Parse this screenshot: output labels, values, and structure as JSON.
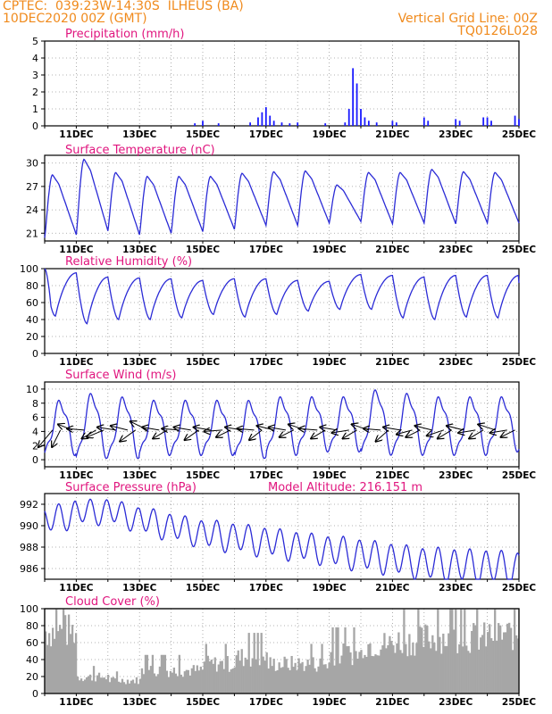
{
  "header": {
    "line1_left": "CPTEC:  039:23W-14:30S  ILHEUS (BA)",
    "line2_left": "10DEC2020 00Z (GMT)",
    "line2_right": "Vertical Grid Line: 00Z",
    "line3_right": "TQ0126L028"
  },
  "colors": {
    "header": "#f08a1c",
    "panel_title": "#e0157e",
    "series": "#2b2bd6",
    "precip_bar": "#1a1aff",
    "cloud_fill": "#a6a6a6",
    "axis": "#000000",
    "grid": "#9a9a9a"
  },
  "x_axis": {
    "type": "date",
    "start": "10DEC2020 00Z",
    "end": "25DEC2020 00Z",
    "tick_labels": [
      "11DEC",
      "13DEC",
      "15DEC",
      "17DEC",
      "19DEC",
      "21DEC",
      "23DEC",
      "25DEC"
    ],
    "vertical_grid": "daily at 00Z"
  },
  "chart_data": [
    {
      "id": "precip",
      "type": "bar",
      "title": "Precipitation (mm/h)",
      "ylim": [
        0,
        5
      ],
      "yticks": [
        0,
        1,
        2,
        3,
        4,
        5
      ],
      "grid": true,
      "points": [
        [
          "14DEC 18Z",
          0.15
        ],
        [
          "15DEC 00Z",
          0.3
        ],
        [
          "15DEC 12Z",
          0.15
        ],
        [
          "16DEC 12Z",
          0.2
        ],
        [
          "16DEC 18Z",
          0.5
        ],
        [
          "16DEC 21Z",
          0.8
        ],
        [
          "17DEC 00Z",
          1.1
        ],
        [
          "17DEC 03Z",
          0.6
        ],
        [
          "17DEC 06Z",
          0.3
        ],
        [
          "17DEC 12Z",
          0.2
        ],
        [
          "17DEC 18Z",
          0.15
        ],
        [
          "18DEC 00Z",
          0.2
        ],
        [
          "18DEC 21Z",
          0.15
        ],
        [
          "19DEC 12Z",
          0.2
        ],
        [
          "19DEC 15Z",
          1.0
        ],
        [
          "19DEC 18Z",
          3.4
        ],
        [
          "19DEC 21Z",
          2.5
        ],
        [
          "20DEC 00Z",
          1.0
        ],
        [
          "20DEC 03Z",
          0.5
        ],
        [
          "20DEC 06Z",
          0.3
        ],
        [
          "20DEC 12Z",
          0.2
        ],
        [
          "21DEC 00Z",
          0.3
        ],
        [
          "21DEC 03Z",
          0.2
        ],
        [
          "22DEC 00Z",
          0.5
        ],
        [
          "22DEC 03Z",
          0.3
        ],
        [
          "23DEC 00Z",
          0.4
        ],
        [
          "23DEC 03Z",
          0.3
        ],
        [
          "23DEC 21Z",
          0.5
        ],
        [
          "24DEC 00Z",
          0.5
        ],
        [
          "24DEC 03Z",
          0.3
        ],
        [
          "24DEC 21Z",
          0.6
        ],
        [
          "25DEC 00Z",
          0.4
        ]
      ]
    },
    {
      "id": "temp",
      "type": "line",
      "title": "Surface Temperature (nC)",
      "ylim": [
        20,
        31
      ],
      "yticks": [
        21,
        24,
        27,
        30
      ],
      "grid": true,
      "daily_min": [
        20.4,
        20.8,
        21.3,
        20.8,
        21.0,
        21.2,
        21.5,
        22.0,
        22.0,
        22.3,
        22.5,
        22.2,
        22.3,
        22.2,
        22.3
      ],
      "daily_max": [
        28.5,
        30.5,
        28.8,
        28.3,
        28.3,
        28.3,
        28.7,
        28.9,
        29.0,
        27.2,
        28.8,
        28.8,
        29.2,
        28.9,
        28.8
      ],
      "end_value": 23.6
    },
    {
      "id": "rh",
      "type": "line",
      "title": "Relative Humidity (%)",
      "ylim": [
        0,
        100
      ],
      "yticks": [
        0,
        20,
        40,
        60,
        80,
        100
      ],
      "grid": true,
      "daily_peak": [
        96,
        95,
        90,
        89,
        88,
        86,
        88,
        88,
        86,
        85,
        93,
        92,
        90,
        92,
        92
      ],
      "daily_min": [
        44,
        35,
        40,
        40,
        42,
        46,
        43,
        46,
        50,
        52,
        52,
        42,
        40,
        43,
        42
      ],
      "start_value": 100,
      "end_value": 83
    },
    {
      "id": "wind",
      "type": "line",
      "title": "Surface Wind (m/s)",
      "ylim": [
        -1,
        11
      ],
      "yticks": [
        0,
        2,
        4,
        6,
        8,
        10
      ],
      "grid": true,
      "daily_max": [
        8.0,
        9.0,
        8.5,
        8.0,
        8.0,
        8.0,
        8.0,
        8.5,
        8.5,
        8.5,
        9.5,
        9.0,
        8.5,
        8.5,
        8.5
      ],
      "daily_min": [
        1.0,
        0.5,
        0.5,
        1.0,
        1.0,
        1.0,
        0.5,
        1.0,
        1.5,
        1.5,
        1.0,
        1.0,
        1.0,
        1.0,
        1.5
      ],
      "vectors": [
        {
          "t": "10DEC 06Z",
          "u": -1.0,
          "v": -1.2
        },
        {
          "t": "10DEC 12Z",
          "u": -0.6,
          "v": -1.2
        },
        {
          "t": "10DEC 21Z",
          "u": -1.0,
          "v": 0.4
        },
        {
          "t": "11DEC 06Z",
          "u": -1.2,
          "v": 0.1
        },
        {
          "t": "11DEC 15Z",
          "u": -1.0,
          "v": -0.6
        },
        {
          "t": "11DEC 21Z",
          "u": -1.2,
          "v": -0.5
        },
        {
          "t": "12DEC 06Z",
          "u": -1.3,
          "v": 0.2
        },
        {
          "t": "12DEC 15Z",
          "u": -1.2,
          "v": 0.3
        },
        {
          "t": "12DEC 21Z",
          "u": -1.1,
          "v": -0.8
        },
        {
          "t": "13DEC 06Z",
          "u": -1.2,
          "v": 0.6
        },
        {
          "t": "13DEC 15Z",
          "u": -1.2,
          "v": 0.2
        },
        {
          "t": "13DEC 21Z",
          "u": -1.0,
          "v": -0.6
        },
        {
          "t": "14DEC 06Z",
          "u": -1.2,
          "v": 0.1
        },
        {
          "t": "14DEC 15Z",
          "u": -1.2,
          "v": 0.2
        },
        {
          "t": "14DEC 21Z",
          "u": -1.0,
          "v": -0.7
        },
        {
          "t": "15DEC 06Z",
          "u": -1.2,
          "v": 0.2
        },
        {
          "t": "15DEC 15Z",
          "u": -1.3,
          "v": -0.1
        },
        {
          "t": "15DEC 21Z",
          "u": -1.0,
          "v": -0.5
        },
        {
          "t": "16DEC 06Z",
          "u": -1.2,
          "v": 0.2
        },
        {
          "t": "16DEC 15Z",
          "u": -1.2,
          "v": 0.1
        },
        {
          "t": "16DEC 21Z",
          "u": -0.9,
          "v": -0.7
        },
        {
          "t": "17DEC 06Z",
          "u": -1.2,
          "v": 0.3
        },
        {
          "t": "17DEC 15Z",
          "u": -1.2,
          "v": 0.2
        },
        {
          "t": "17DEC 21Z",
          "u": -1.0,
          "v": -0.5
        },
        {
          "t": "18DEC 06Z",
          "u": -1.2,
          "v": 0.4
        },
        {
          "t": "18DEC 15Z",
          "u": -1.3,
          "v": 0.1
        },
        {
          "t": "18DEC 21Z",
          "u": -1.0,
          "v": -0.6
        },
        {
          "t": "19DEC 06Z",
          "u": -1.2,
          "v": 0.2
        },
        {
          "t": "19DEC 15Z",
          "u": -1.2,
          "v": -0.2
        },
        {
          "t": "19DEC 21Z",
          "u": -1.0,
          "v": -0.6
        },
        {
          "t": "20DEC 06Z",
          "u": -1.2,
          "v": 0.4
        },
        {
          "t": "20DEC 15Z",
          "u": -1.2,
          "v": 0.1
        },
        {
          "t": "20DEC 21Z",
          "u": -0.9,
          "v": -0.8
        },
        {
          "t": "21DEC 06Z",
          "u": -1.2,
          "v": 0.2
        },
        {
          "t": "21DEC 15Z",
          "u": -1.1,
          "v": -0.3
        },
        {
          "t": "21DEC 21Z",
          "u": -1.0,
          "v": -0.5
        },
        {
          "t": "22DEC 06Z",
          "u": -1.2,
          "v": 0.3
        },
        {
          "t": "22DEC 15Z",
          "u": -1.2,
          "v": -0.4
        },
        {
          "t": "22DEC 21Z",
          "u": -1.0,
          "v": -0.6
        },
        {
          "t": "23DEC 06Z",
          "u": -1.2,
          "v": 0.3
        },
        {
          "t": "23DEC 15Z",
          "u": -1.2,
          "v": -0.2
        },
        {
          "t": "23DEC 21Z",
          "u": -1.0,
          "v": -0.6
        },
        {
          "t": "24DEC 06Z",
          "u": -1.2,
          "v": 0.4
        },
        {
          "t": "24DEC 15Z",
          "u": -1.2,
          "v": -0.2
        },
        {
          "t": "24DEC 21Z",
          "u": -1.0,
          "v": -0.5
        }
      ]
    },
    {
      "id": "pres",
      "type": "line",
      "title": "Surface Pressure (hPa)",
      "annotation": "Model Altitude: 216.151 m",
      "ylim": [
        985,
        993
      ],
      "yticks": [
        986,
        988,
        990,
        992
      ],
      "grid": true,
      "baseline": [
        990.4,
        991.2,
        991.4,
        990.6,
        989.9,
        989.3,
        988.9,
        988.5,
        988.1,
        987.7,
        987.3,
        986.9,
        986.5,
        986.3,
        986.2,
        986.0
      ],
      "semidiurnal_amplitude": [
        1.2,
        1.1,
        1.1,
        1.2,
        1.2,
        1.3,
        1.3,
        1.3,
        1.3,
        1.4,
        1.4,
        1.4,
        1.5,
        1.5,
        1.5,
        1.5
      ]
    },
    {
      "id": "cloud",
      "type": "area",
      "title": "Cloud Cover (%)",
      "ylim": [
        0,
        100
      ],
      "yticks": [
        0,
        20,
        40,
        60,
        80,
        100
      ],
      "grid": true,
      "daily_level": [
        95,
        25,
        20,
        35,
        35,
        45,
        55,
        45,
        45,
        60,
        75,
        80,
        85,
        85,
        90,
        90
      ]
    }
  ]
}
